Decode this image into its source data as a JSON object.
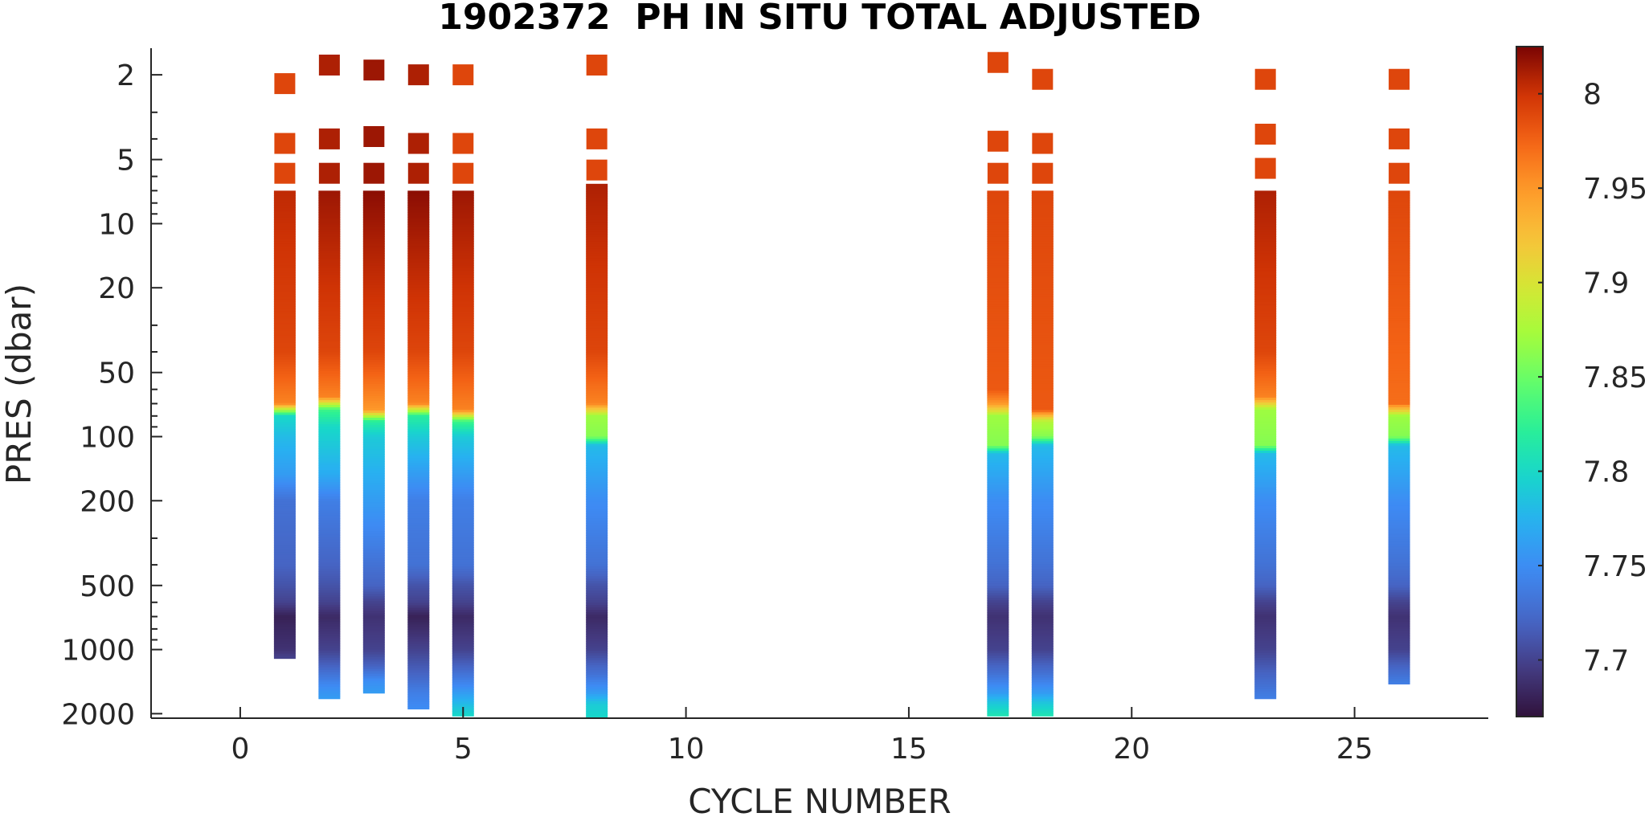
{
  "chart_data": {
    "type": "heatmap",
    "title": "1902372  PH IN SITU TOTAL ADJUSTED",
    "xlabel": "CYCLE NUMBER",
    "ylabel": "PRES (dbar)",
    "xlim": [
      -2,
      28
    ],
    "ylim": [
      1.5,
      2100
    ],
    "yscale": "log",
    "yreverse": true,
    "xticks": [
      0,
      5,
      10,
      15,
      20,
      25
    ],
    "yticks": [
      2,
      5,
      10,
      20,
      50,
      100,
      200,
      500,
      1000,
      2000
    ],
    "colorbar": {
      "colormap": "turbo",
      "clim": [
        7.67,
        8.025
      ],
      "ticks": [
        7.7,
        7.75,
        7.8,
        7.85,
        7.9,
        7.95,
        8
      ]
    },
    "surface_points": [
      {
        "cycle": 1,
        "pres": [
          2.2,
          4.2,
          5.8
        ],
        "ph": [
          7.99,
          7.99,
          7.99
        ]
      },
      {
        "cycle": 2,
        "pres": [
          1.8,
          4.0,
          5.8
        ],
        "ph": [
          8.01,
          8.01,
          8.01
        ]
      },
      {
        "cycle": 3,
        "pres": [
          1.9,
          3.9,
          5.8
        ],
        "ph": [
          8.015,
          8.015,
          8.015
        ]
      },
      {
        "cycle": 4,
        "pres": [
          2.0,
          4.2,
          5.8
        ],
        "ph": [
          8.01,
          8.01,
          8.01
        ]
      },
      {
        "cycle": 5,
        "pres": [
          2.0,
          4.2,
          5.8
        ],
        "ph": [
          7.99,
          7.99,
          7.99
        ]
      },
      {
        "cycle": 8,
        "pres": [
          1.8,
          4.0,
          5.6
        ],
        "ph": [
          7.99,
          7.99,
          7.99
        ]
      },
      {
        "cycle": 17,
        "pres": [
          1.75,
          4.1,
          5.8
        ],
        "ph": [
          7.99,
          7.99,
          7.99
        ]
      },
      {
        "cycle": 18,
        "pres": [
          2.1,
          4.2,
          5.8
        ],
        "ph": [
          7.99,
          7.99,
          7.99
        ]
      },
      {
        "cycle": 23,
        "pres": [
          2.1,
          3.8,
          5.5
        ],
        "ph": [
          7.99,
          7.99,
          7.99
        ]
      },
      {
        "cycle": 26,
        "pres": [
          2.1,
          4.0,
          5.8
        ],
        "ph": [
          7.99,
          7.99,
          7.99
        ]
      }
    ],
    "profiles": [
      {
        "cycle": 1,
        "top": 7,
        "bottom": 1100,
        "layers": [
          [
            7,
            8.005
          ],
          [
            40,
            7.99
          ],
          [
            70,
            7.96
          ],
          [
            80,
            7.8
          ],
          [
            100,
            7.78
          ],
          [
            150,
            7.76
          ],
          [
            200,
            7.73
          ],
          [
            400,
            7.72
          ],
          [
            500,
            7.71
          ],
          [
            600,
            7.7
          ],
          [
            700,
            7.68
          ],
          [
            1000,
            7.69
          ],
          [
            1100,
            7.7
          ]
        ]
      },
      {
        "cycle": 2,
        "top": 7,
        "bottom": 1700,
        "layers": [
          [
            7,
            8.015
          ],
          [
            40,
            7.99
          ],
          [
            65,
            7.96
          ],
          [
            75,
            7.83
          ],
          [
            90,
            7.8
          ],
          [
            150,
            7.77
          ],
          [
            200,
            7.74
          ],
          [
            400,
            7.72
          ],
          [
            500,
            7.71
          ],
          [
            600,
            7.7
          ],
          [
            700,
            7.685
          ],
          [
            1000,
            7.7
          ],
          [
            1200,
            7.72
          ],
          [
            1500,
            7.75
          ],
          [
            1700,
            7.76
          ]
        ]
      },
      {
        "cycle": 3,
        "top": 7,
        "bottom": 1600,
        "layers": [
          [
            7,
            8.02
          ],
          [
            40,
            7.99
          ],
          [
            75,
            7.95
          ],
          [
            85,
            7.82
          ],
          [
            100,
            7.79
          ],
          [
            200,
            7.76
          ],
          [
            400,
            7.73
          ],
          [
            500,
            7.72
          ],
          [
            600,
            7.7
          ],
          [
            700,
            7.69
          ],
          [
            1000,
            7.7
          ],
          [
            1200,
            7.72
          ],
          [
            1400,
            7.75
          ],
          [
            1600,
            7.76
          ]
        ]
      },
      {
        "cycle": 4,
        "top": 7,
        "bottom": 1900,
        "layers": [
          [
            7,
            8.02
          ],
          [
            40,
            7.99
          ],
          [
            70,
            7.96
          ],
          [
            80,
            7.82
          ],
          [
            100,
            7.79
          ],
          [
            150,
            7.76
          ],
          [
            200,
            7.74
          ],
          [
            400,
            7.73
          ],
          [
            500,
            7.71
          ],
          [
            600,
            7.7
          ],
          [
            700,
            7.68
          ],
          [
            1000,
            7.7
          ],
          [
            1300,
            7.72
          ],
          [
            1600,
            7.74
          ],
          [
            1900,
            7.75
          ]
        ]
      },
      {
        "cycle": 5,
        "top": 7,
        "bottom": 2050,
        "layers": [
          [
            7,
            8.015
          ],
          [
            40,
            7.99
          ],
          [
            75,
            7.96
          ],
          [
            85,
            7.83
          ],
          [
            100,
            7.79
          ],
          [
            150,
            7.76
          ],
          [
            200,
            7.74
          ],
          [
            400,
            7.73
          ],
          [
            500,
            7.71
          ],
          [
            600,
            7.7
          ],
          [
            700,
            7.685
          ],
          [
            1000,
            7.7
          ],
          [
            1200,
            7.72
          ],
          [
            1500,
            7.75
          ],
          [
            1800,
            7.78
          ],
          [
            2050,
            7.8
          ]
        ]
      },
      {
        "cycle": 8,
        "top": 6.5,
        "bottom": 2100,
        "layers": [
          [
            6.5,
            8.01
          ],
          [
            40,
            7.99
          ],
          [
            70,
            7.96
          ],
          [
            80,
            7.87
          ],
          [
            100,
            7.86
          ],
          [
            110,
            7.78
          ],
          [
            200,
            7.75
          ],
          [
            400,
            7.73
          ],
          [
            500,
            7.71
          ],
          [
            600,
            7.7
          ],
          [
            700,
            7.685
          ],
          [
            1000,
            7.7
          ],
          [
            1300,
            7.73
          ],
          [
            1600,
            7.76
          ],
          [
            1800,
            7.79
          ],
          [
            2100,
            7.8
          ]
        ]
      },
      {
        "cycle": 17,
        "top": 7,
        "bottom": 2050,
        "layers": [
          [
            7,
            7.99
          ],
          [
            60,
            7.98
          ],
          [
            70,
            7.95
          ],
          [
            80,
            7.87
          ],
          [
            110,
            7.86
          ],
          [
            120,
            7.78
          ],
          [
            200,
            7.75
          ],
          [
            400,
            7.73
          ],
          [
            500,
            7.72
          ],
          [
            600,
            7.7
          ],
          [
            700,
            7.69
          ],
          [
            1000,
            7.7
          ],
          [
            1300,
            7.73
          ],
          [
            1600,
            7.76
          ],
          [
            1800,
            7.79
          ],
          [
            2050,
            7.81
          ]
        ]
      },
      {
        "cycle": 18,
        "top": 7,
        "bottom": 2050,
        "layers": [
          [
            7,
            7.99
          ],
          [
            75,
            7.98
          ],
          [
            85,
            7.88
          ],
          [
            100,
            7.86
          ],
          [
            110,
            7.78
          ],
          [
            200,
            7.75
          ],
          [
            400,
            7.73
          ],
          [
            500,
            7.72
          ],
          [
            600,
            7.7
          ],
          [
            700,
            7.69
          ],
          [
            1000,
            7.7
          ],
          [
            1300,
            7.73
          ],
          [
            1600,
            7.76
          ],
          [
            1800,
            7.79
          ],
          [
            2050,
            7.81
          ]
        ]
      },
      {
        "cycle": 23,
        "top": 7,
        "bottom": 1700,
        "layers": [
          [
            7,
            8.01
          ],
          [
            40,
            7.99
          ],
          [
            65,
            7.96
          ],
          [
            75,
            7.87
          ],
          [
            110,
            7.86
          ],
          [
            120,
            7.78
          ],
          [
            200,
            7.75
          ],
          [
            400,
            7.73
          ],
          [
            500,
            7.72
          ],
          [
            600,
            7.7
          ],
          [
            700,
            7.69
          ],
          [
            1000,
            7.7
          ],
          [
            1300,
            7.72
          ],
          [
            1700,
            7.74
          ]
        ]
      },
      {
        "cycle": 26,
        "top": 7,
        "bottom": 1450,
        "layers": [
          [
            7,
            7.99
          ],
          [
            70,
            7.97
          ],
          [
            80,
            7.87
          ],
          [
            100,
            7.86
          ],
          [
            110,
            7.78
          ],
          [
            200,
            7.75
          ],
          [
            400,
            7.73
          ],
          [
            500,
            7.72
          ],
          [
            600,
            7.7
          ],
          [
            700,
            7.69
          ],
          [
            1000,
            7.7
          ],
          [
            1200,
            7.72
          ],
          [
            1450,
            7.74
          ]
        ]
      }
    ]
  }
}
